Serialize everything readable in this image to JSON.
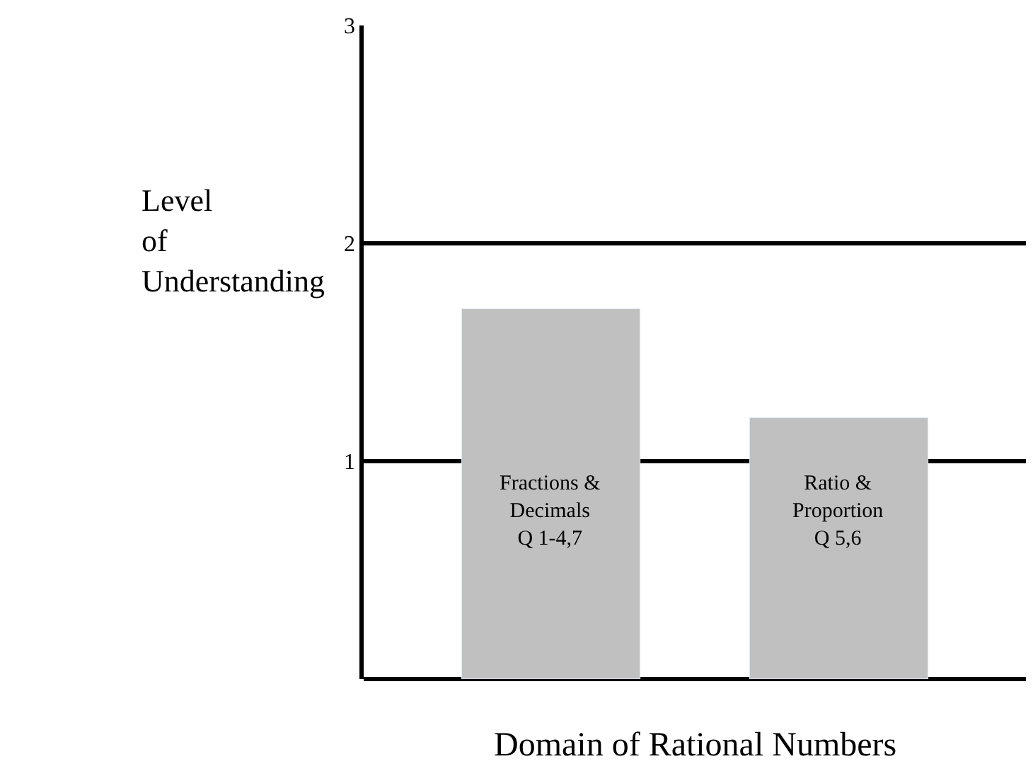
{
  "chart_data": {
    "type": "bar",
    "categories": [
      "Fractions & Decimals Q 1-4,7",
      "Ratio & Proportion Q 5,6"
    ],
    "values": [
      1.7,
      1.2
    ],
    "color": "#c0c0c0",
    "ylim": [
      0,
      3
    ],
    "yticks": [
      1,
      2,
      3
    ],
    "grid": "y",
    "xlabel": "Domain of Rational Numbers",
    "ylabel": "Level of Understanding"
  }
}
